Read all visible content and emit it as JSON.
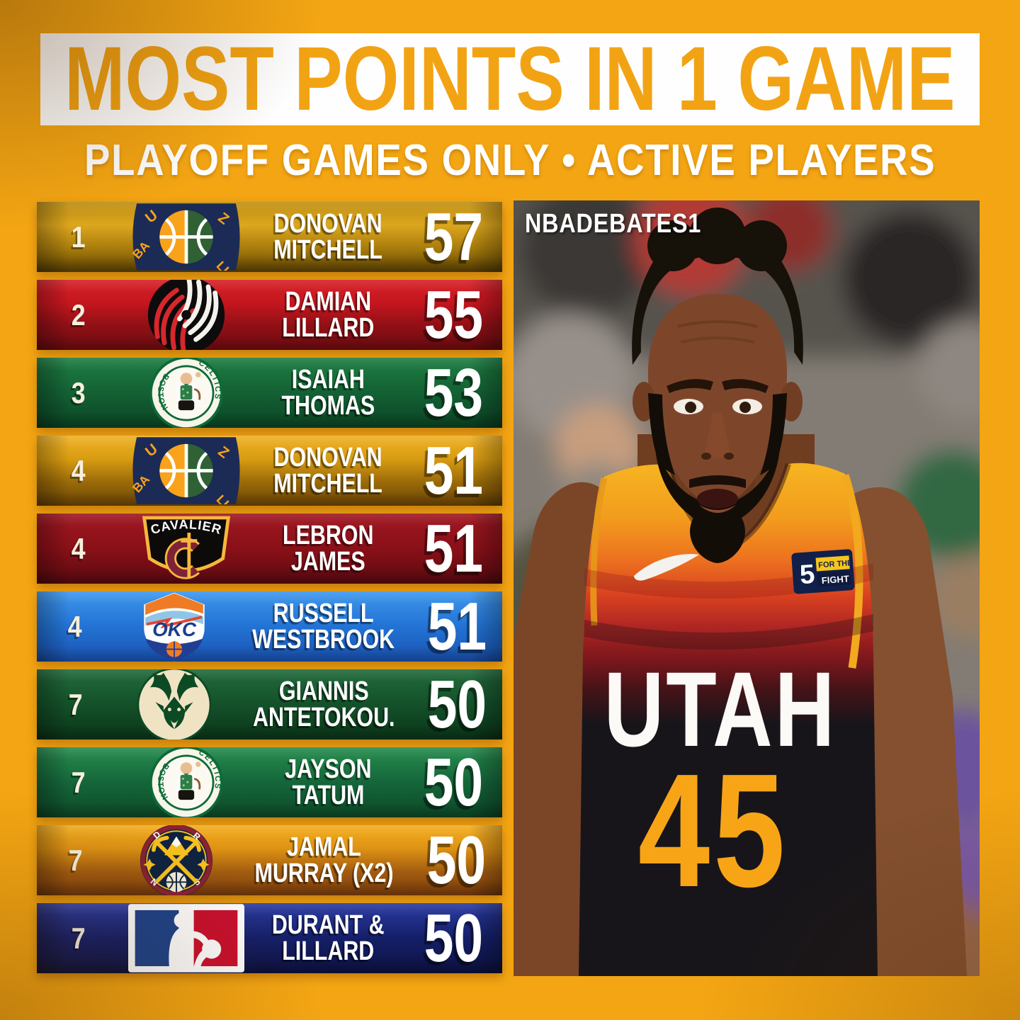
{
  "header": {
    "title": "MOST POINTS IN 1 GAME",
    "subtitle": "PLAYOFF GAMES ONLY • ACTIVE PLAYERS",
    "watermark": "NBADEBATES1"
  },
  "colors": {
    "background": "#F3A513",
    "banner": "#FEFEFE",
    "title_text": "#F2A314",
    "subtitle_text": "#FFFFFF",
    "row_text": "#FFFFFF",
    "jersey_number_gold": "#F7A517"
  },
  "jersey": {
    "team_text": "UTAH",
    "number": "45",
    "patch_number": "5",
    "patch_line1": "FOR THE",
    "patch_line2": "FIGHT"
  },
  "logo_text": {
    "jazz": [
      "U",
      "Z",
      "BA",
      "LL"
    ],
    "celtics": [
      "BOSTON",
      "CELTICS"
    ],
    "cavaliers": "CAVALIERS",
    "okc": "OKC",
    "nuggets": [
      "D",
      "R",
      "N",
      "S"
    ]
  },
  "rows": [
    {
      "rank": "1",
      "logo": "utah-jazz",
      "team": "Utah Jazz",
      "line1": "DONOVAN",
      "line2": "MITCHELL",
      "points": "57",
      "bg": [
        "#BE8E10",
        "#DCA61E",
        "#A87C0C",
        "#5E4404"
      ]
    },
    {
      "rank": "2",
      "logo": "trail-blazers",
      "team": "Portland Trail Blazers",
      "line1": "DAMIAN",
      "line2": "LILLARD",
      "points": "55",
      "bg": [
        "#D62028",
        "#C4161E",
        "#8E1016",
        "#700B10"
      ]
    },
    {
      "rank": "3",
      "logo": "celtics",
      "team": "Boston Celtics",
      "line1": "ISAIAH",
      "line2": "THOMAS",
      "points": "53",
      "bg": [
        "#1F7E42",
        "#136134",
        "#0B4524"
      ]
    },
    {
      "rank": "4",
      "logo": "utah-jazz",
      "team": "Utah Jazz",
      "line1": "DONOVAN",
      "line2": "MITCHELL",
      "points": "51",
      "bg": [
        "#F0B125",
        "#D89C12",
        "#9A6A08",
        "#6E4606"
      ]
    },
    {
      "rank": "4",
      "logo": "cavaliers",
      "team": "Cleveland Cavaliers",
      "line1": "LEBRON",
      "line2": "JAMES",
      "points": "51",
      "bg": [
        "#A01822",
        "#8A1018",
        "#5A0A10"
      ]
    },
    {
      "rank": "4",
      "logo": "okc-thunder",
      "team": "Oklahoma City Thunder",
      "line1": "RUSSELL",
      "line2": "WESTBROOK",
      "points": "51",
      "bg": [
        "#3F97ED",
        "#2273D4",
        "#1A52B2"
      ]
    },
    {
      "rank": "7",
      "logo": "bucks",
      "team": "Milwaukee Bucks",
      "line1": "GIANNIS",
      "line2": "ANTETOKOU.",
      "points": "50",
      "bg": [
        "#226B3C",
        "#14512A",
        "#0A3618"
      ]
    },
    {
      "rank": "7",
      "logo": "celtics",
      "team": "Boston Celtics",
      "line1": "JAYSON",
      "line2": "TATUM",
      "points": "50",
      "bg": [
        "#278C4E",
        "#15663A",
        "#0C4A28"
      ]
    },
    {
      "rank": "7",
      "logo": "nuggets",
      "team": "Denver Nuggets",
      "line1": "JAMAL",
      "line2": "MURRAY (X2)",
      "points": "50",
      "bg": [
        "#F4AE1E",
        "#DE9214",
        "#A25C10",
        "#7E3E0C"
      ]
    },
    {
      "rank": "7",
      "logo": "nba",
      "team": "NBA",
      "line1": "DURANT &",
      "line2": "LILLARD",
      "points": "50",
      "bg": [
        "#2A3BA2",
        "#151F68",
        "#0C1242"
      ]
    }
  ],
  "chart_data": {
    "type": "table",
    "title": "MOST POINTS IN 1 GAME",
    "subtitle": "PLAYOFF GAMES ONLY • ACTIVE PLAYERS",
    "columns": [
      "rank",
      "team",
      "player",
      "points"
    ],
    "rows": [
      {
        "rank": 1,
        "team": "Utah Jazz",
        "player": "Donovan Mitchell",
        "points": 57
      },
      {
        "rank": 2,
        "team": "Portland Trail Blazers",
        "player": "Damian Lillard",
        "points": 55
      },
      {
        "rank": 3,
        "team": "Boston Celtics",
        "player": "Isaiah Thomas",
        "points": 53
      },
      {
        "rank": 4,
        "team": "Utah Jazz",
        "player": "Donovan Mitchell",
        "points": 51
      },
      {
        "rank": 4,
        "team": "Cleveland Cavaliers",
        "player": "LeBron James",
        "points": 51
      },
      {
        "rank": 4,
        "team": "Oklahoma City Thunder",
        "player": "Russell Westbrook",
        "points": 51
      },
      {
        "rank": 7,
        "team": "Milwaukee Bucks",
        "player": "Giannis Antetokou.",
        "points": 50
      },
      {
        "rank": 7,
        "team": "Boston Celtics",
        "player": "Jayson Tatum",
        "points": 50
      },
      {
        "rank": 7,
        "team": "Denver Nuggets",
        "player": "Jamal Murray (X2)",
        "points": 50
      },
      {
        "rank": 7,
        "team": "NBA",
        "player": "Durant & Lillard",
        "points": 50
      }
    ]
  }
}
